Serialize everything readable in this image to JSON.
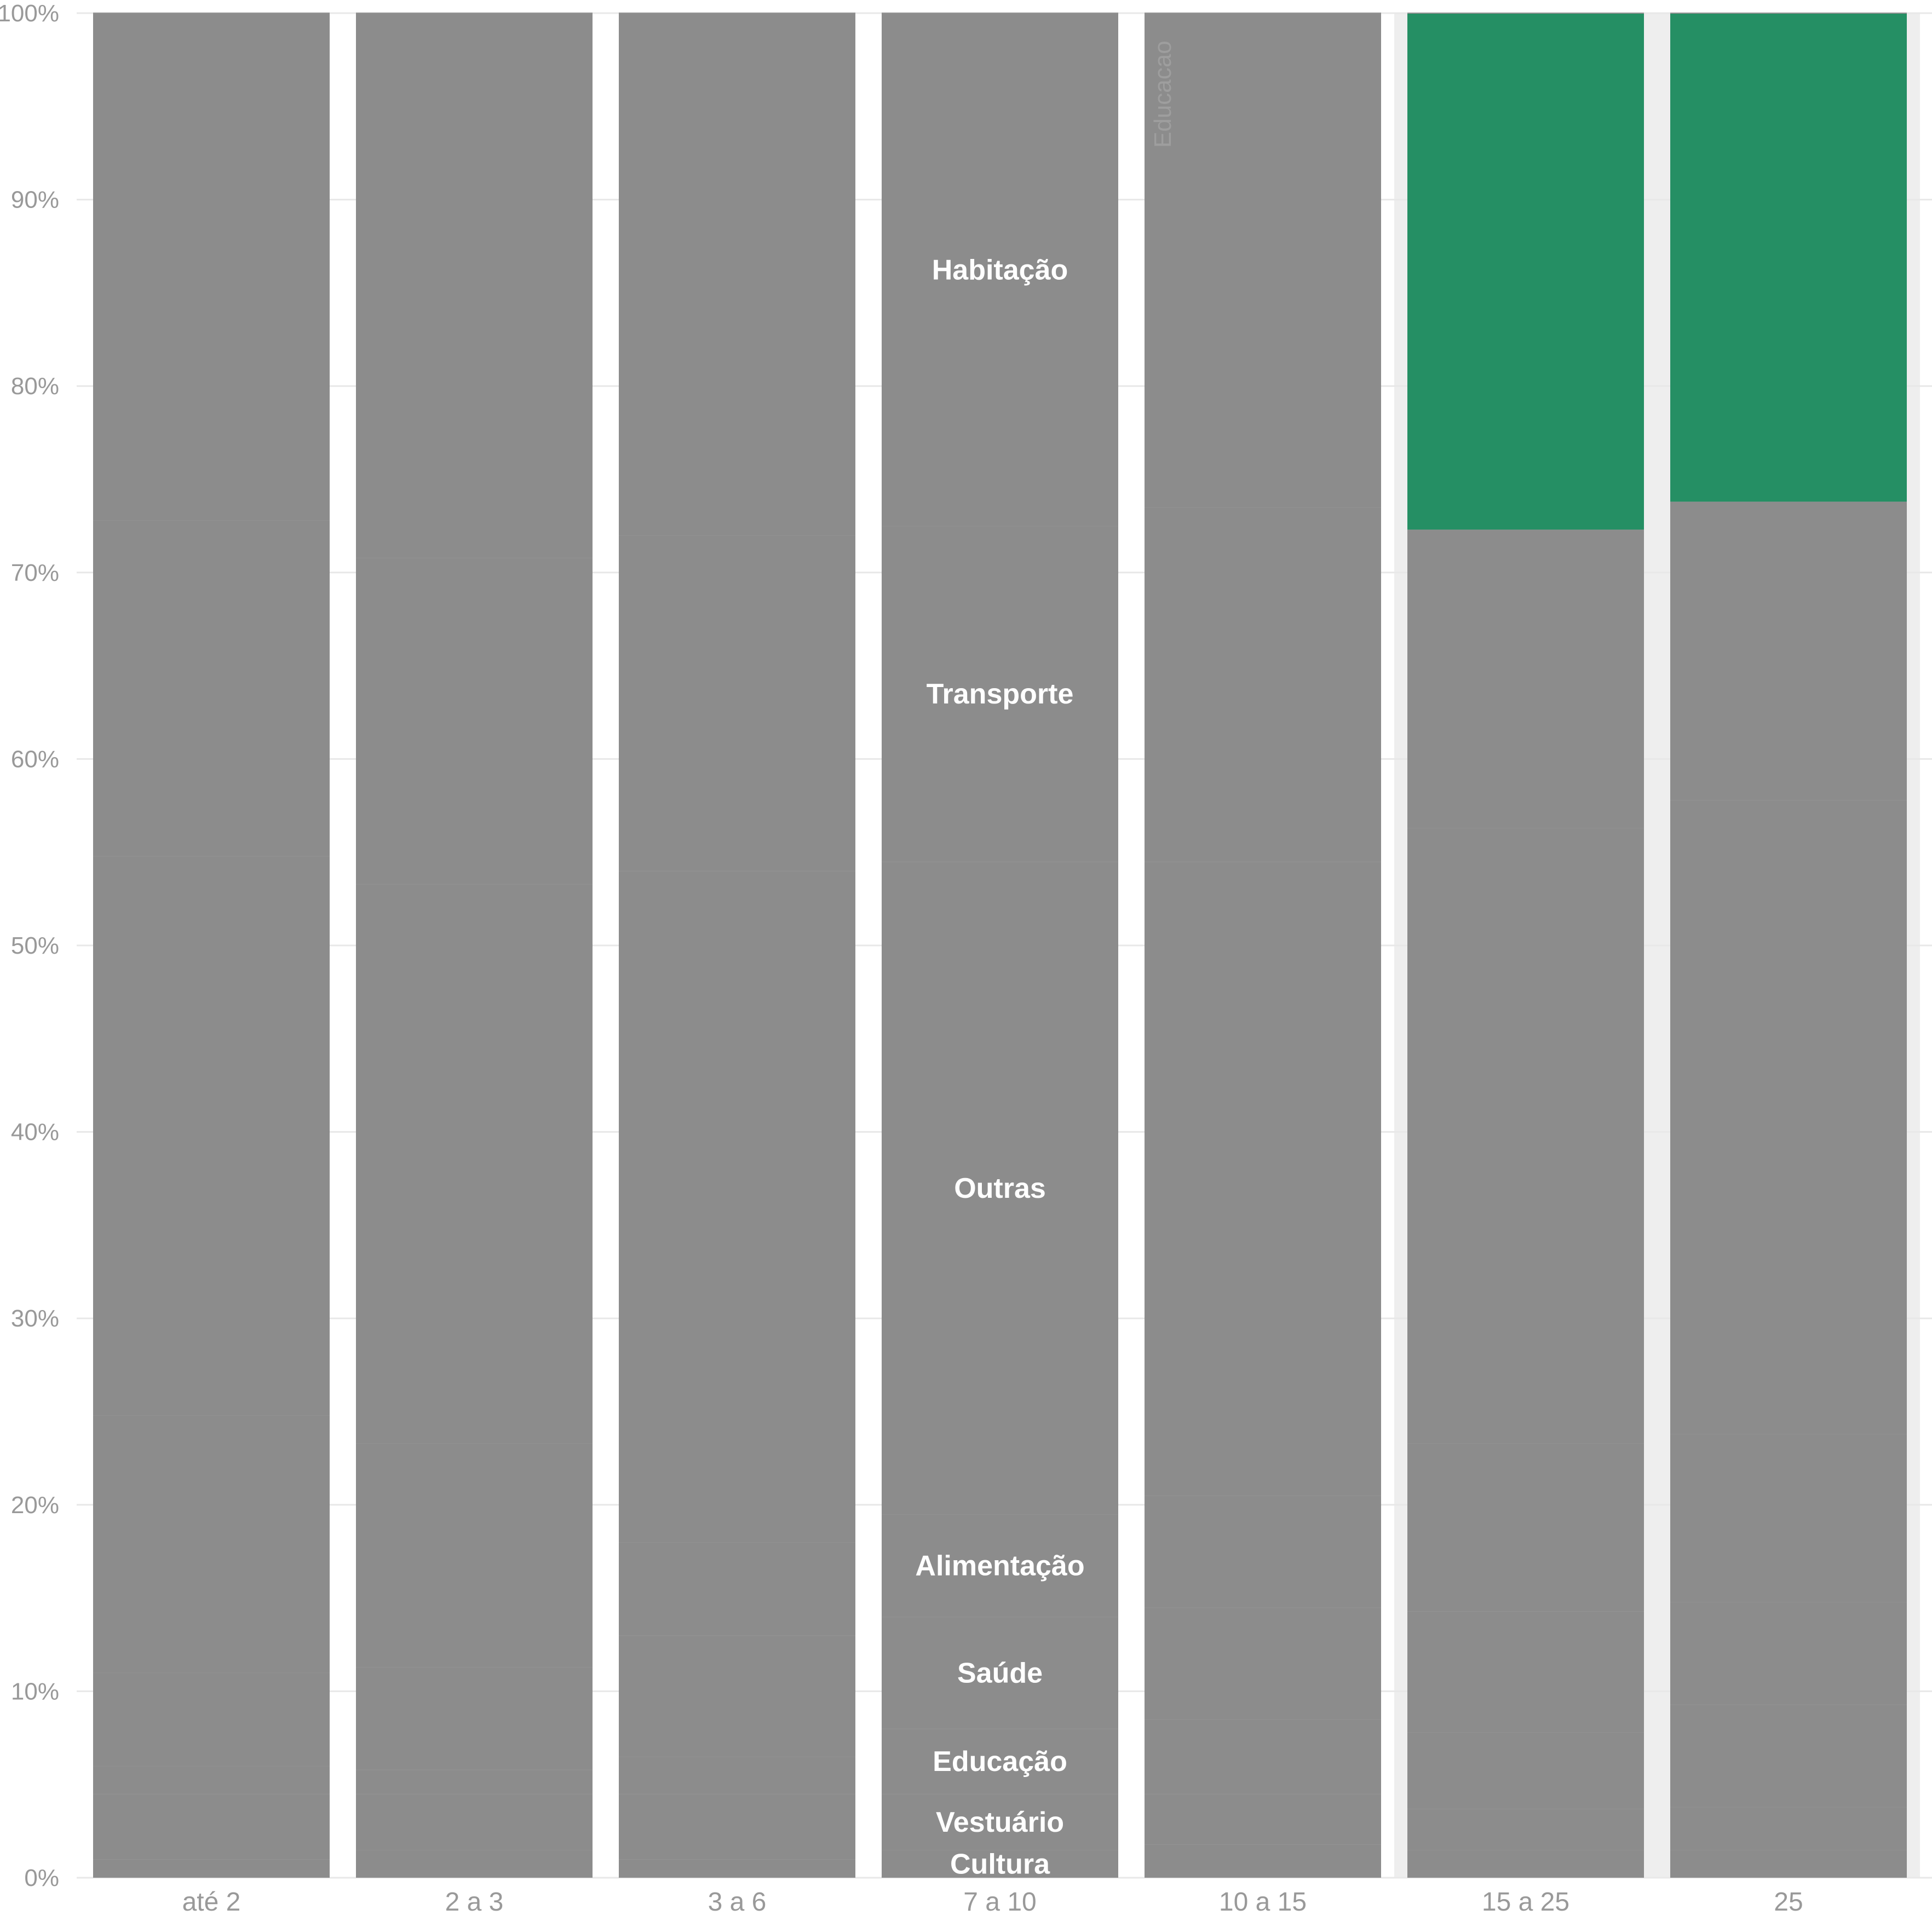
{
  "chart_data": {
    "type": "bar",
    "stacked": true,
    "normalized": true,
    "categories": [
      "até 2",
      "2 a 3",
      "3 a 6",
      "7 a 10",
      "10 a 15",
      "15 a 25",
      "25"
    ],
    "y_ticks": [
      "0%",
      "10%",
      "20%",
      "30%",
      "40%",
      "50%",
      "60%",
      "70%",
      "80%",
      "90%",
      "100%"
    ],
    "ylim": [
      0,
      100
    ],
    "grid": true,
    "legend": "none",
    "highlighted_categories": [
      "15 a 25",
      "25"
    ],
    "highlight_series": "Habitação",
    "colors": {
      "segment": "#8c8c8c",
      "highlight": "#258f64",
      "gridline": "#e8e8e8",
      "band": "#eeeeee",
      "axis_text": "#999999"
    },
    "series": [
      {
        "name": "Cultura",
        "values": [
          1.0,
          1.5,
          1.0,
          1.5,
          1.8,
          1.5,
          1.5
        ]
      },
      {
        "name": "Vestuário",
        "values": [
          3.5,
          3.0,
          3.5,
          3.0,
          2.7,
          2.2,
          2.3
        ]
      },
      {
        "name": "Educação",
        "values": [
          1.5,
          1.3,
          2.0,
          3.5,
          4.0,
          4.1,
          5.5
        ]
      },
      {
        "name": "Saúde",
        "values": [
          5.0,
          5.5,
          6.5,
          6.0,
          6.0,
          6.5,
          5.5
        ]
      },
      {
        "name": "Alimentação",
        "values": [
          13.8,
          12.0,
          5.0,
          5.5,
          6.0,
          9.0,
          9.0
        ]
      },
      {
        "name": "Outras",
        "values": [
          30.0,
          30.0,
          36.0,
          35.0,
          34.0,
          33.0,
          34.0
        ]
      },
      {
        "name": "Transporte",
        "values": [
          18.0,
          17.5,
          18.0,
          18.0,
          19.0,
          16.0,
          16.0
        ]
      },
      {
        "name": "Habitação",
        "values": [
          27.2,
          29.2,
          28.0,
          27.5,
          26.5,
          27.7,
          26.2
        ]
      }
    ],
    "segment_labels_category": "7 a 10",
    "annotations": [
      {
        "text": "Educacao",
        "category": "10 a 15",
        "rotated": true
      }
    ]
  }
}
